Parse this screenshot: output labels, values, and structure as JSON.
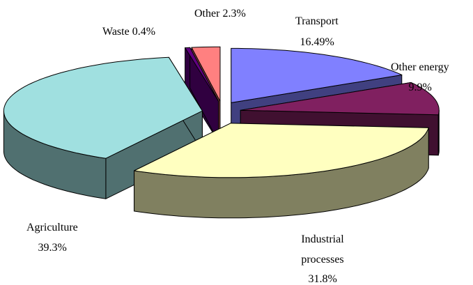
{
  "chart_data": {
    "type": "pie3d",
    "categories": [
      "Transport",
      "Other energy",
      "Industrial processes",
      "Agriculture",
      "Waste",
      "Other"
    ],
    "values": [
      16.49,
      9.9,
      31.8,
      39.3,
      0.4,
      2.3
    ],
    "value_labels": [
      "16.49%",
      "9.9%",
      "31.8%",
      "39.3%",
      "0.4%",
      "2.3%"
    ],
    "colors": [
      "#8080ff",
      "#802060",
      "#ffffc0",
      "#a0e0e0",
      "#600080",
      "#ff8080"
    ]
  }
}
